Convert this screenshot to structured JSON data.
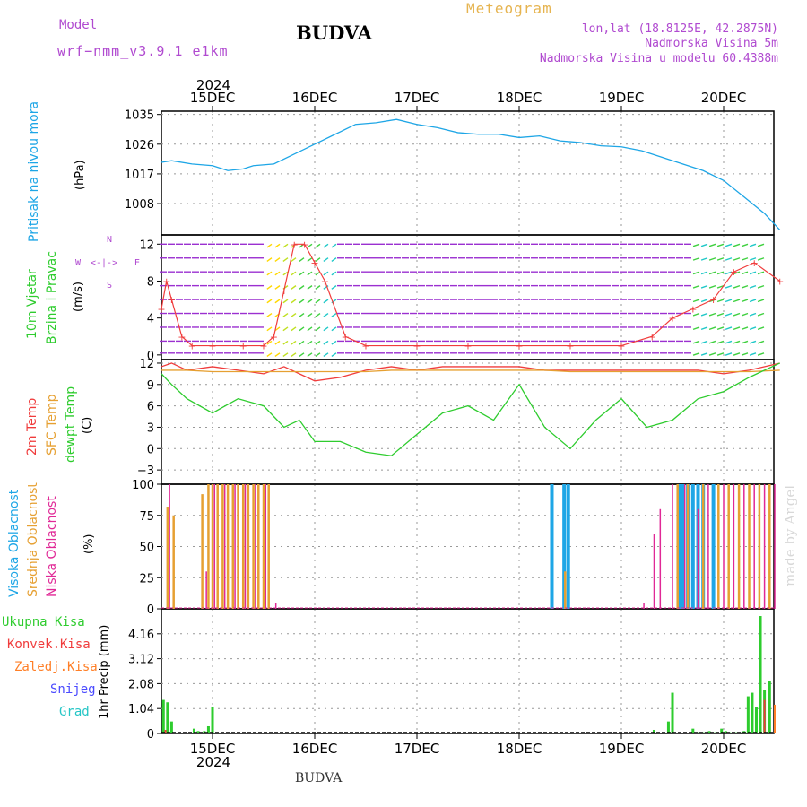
{
  "header": {
    "model_label": "Model",
    "model_name": "wrf−nmm_v3.9.1  e1km",
    "station": "BUDVA",
    "product": "Meteogram",
    "lonlat": "lon,lat (18.8125E, 42.2875N)",
    "elevation": "Nadmorska Visina 5m",
    "elevation_model": "Nadmorska Visina u modelu 60.4388m",
    "credit": "made by Angel",
    "footer_station": "BUDVA"
  },
  "colors": {
    "pressure": "#1ea6e6",
    "wind_speed": "#f03c3c",
    "temp2m": "#f03c3c",
    "sfc_temp": "#e6a032",
    "dewpt": "#2ecc2e",
    "high_cloud": "#1ea6e6",
    "mid_cloud": "#e6a032",
    "low_cloud": "#e02896",
    "total_precip": "#2ecc2e",
    "conv_precip": "#f03c3c",
    "frz_precip": "#ff7f27",
    "snow": "#4b4bff",
    "hail": "#26c6c6",
    "model_label": "#b04ad0",
    "product": "#e6b450"
  },
  "time_axis": {
    "day_labels": [
      "15DEC",
      "16DEC",
      "17DEC",
      "18DEC",
      "19DEC",
      "20DEC"
    ],
    "year": "2024"
  },
  "chart_data": [
    {
      "type": "line",
      "title": "",
      "ylabel": "Pritisak na nivou mora (hPa)",
      "yticks": [
        "1035",
        "1026",
        "1017",
        "1008"
      ],
      "ylim": [
        998.5,
        1036
      ],
      "x_days": [
        0,
        0.1,
        0.3,
        0.5,
        0.65,
        0.8,
        0.9,
        1.1,
        1.3,
        1.5,
        1.7,
        1.9,
        2.1,
        2.3,
        2.5,
        2.7,
        2.9,
        3.1,
        3.3,
        3.5,
        3.7,
        3.9,
        4.1,
        4.3,
        4.5,
        4.7,
        4.9,
        5.1,
        5.3,
        5.5,
        5.7,
        5.9,
        6.05
      ],
      "series": [
        {
          "name": "Pritisak na nivou mora",
          "values": [
            1020.5,
            1021,
            1020,
            1019.5,
            1018,
            1018.5,
            1019.5,
            1020,
            1023,
            1026,
            1029,
            1032,
            1032.5,
            1033.5,
            1032,
            1031,
            1029.5,
            1029,
            1029,
            1028,
            1028.5,
            1027,
            1026.5,
            1025.5,
            1025.2,
            1024,
            1022,
            1020,
            1018,
            1015,
            1010,
            1005,
            1000
          ]
        }
      ]
    },
    {
      "type": "line",
      "title": "",
      "ylabel": "10m Vjetar Brzina i Pravac (m/s)",
      "yticks": [
        "12",
        "8",
        "4",
        "0"
      ],
      "ylim": [
        -0.5,
        13
      ],
      "x_days": [
        0,
        0.05,
        0.1,
        0.2,
        0.3,
        0.5,
        0.8,
        1.0,
        1.1,
        1.2,
        1.3,
        1.4,
        1.5,
        1.6,
        1.8,
        2.0,
        2.5,
        3.0,
        3.5,
        4.0,
        4.5,
        4.8,
        5.0,
        5.2,
        5.4,
        5.6,
        5.8,
        6.05
      ],
      "series": [
        {
          "name": "10m Vjetar",
          "values": [
            5,
            8,
            6,
            2,
            1,
            1,
            1,
            1,
            2,
            7,
            12,
            12,
            10,
            8,
            2,
            1,
            1,
            1,
            1,
            1,
            1,
            2,
            4,
            5,
            6,
            9,
            10,
            8
          ]
        }
      ]
    },
    {
      "type": "line",
      "title": "",
      "ylabel": "2m Temp / SFC Temp / dewpt Temp (C)",
      "yticks": [
        "12",
        "9",
        "6",
        "3",
        "0",
        "−3"
      ],
      "ylim": [
        -5,
        12.5
      ],
      "x_days": [
        0,
        0.1,
        0.25,
        0.5,
        0.75,
        1.0,
        1.2,
        1.35,
        1.5,
        1.75,
        2.0,
        2.25,
        2.5,
        2.75,
        3.0,
        3.25,
        3.5,
        3.75,
        4.0,
        4.25,
        4.5,
        4.75,
        5.0,
        5.25,
        5.5,
        5.75,
        6.05
      ],
      "series": [
        {
          "name": "2m Temp",
          "values": [
            11.5,
            12,
            11,
            11.5,
            11,
            10.5,
            11.5,
            10.5,
            9.5,
            10,
            11,
            11.5,
            11,
            11.5,
            11.5,
            11.5,
            11.5,
            11,
            11,
            11,
            11,
            11,
            11,
            11,
            10.5,
            11,
            12
          ]
        },
        {
          "name": "SFC Temp",
          "values": [
            11,
            11,
            11,
            10.8,
            10.8,
            10.8,
            10.8,
            10.8,
            10.8,
            10.8,
            10.8,
            11,
            11,
            11,
            11,
            11,
            11,
            11,
            10.8,
            10.8,
            10.8,
            10.8,
            10.8,
            10.8,
            10.8,
            10.8,
            11
          ]
        },
        {
          "name": "dewpt Temp",
          "values": [
            10.5,
            9,
            7,
            5,
            7,
            6,
            3,
            4,
            1,
            1,
            -0.5,
            -1,
            2,
            5,
            6,
            4,
            9,
            3,
            0,
            4,
            7,
            3,
            4,
            7,
            8,
            10,
            12
          ]
        }
      ]
    },
    {
      "type": "bar",
      "title": "",
      "ylabel": "Visoka Oblacnost / Srednja Oblacnost / Niska Oblacnost (%)",
      "yticks": [
        "100",
        "75",
        "50",
        "25",
        "0"
      ],
      "ylim": [
        0,
        100
      ],
      "series": [
        {
          "name": "Visoka Oblacnost",
          "x_days": [
            3.82,
            3.94,
            3.98,
            5.07,
            5.1,
            5.15,
            5.2,
            5.25,
            5.3,
            5.4
          ],
          "values": [
            100,
            100,
            100,
            100,
            100,
            100,
            100,
            100,
            100,
            100
          ]
        },
        {
          "name": "Srednja Oblacnost",
          "x_days": [
            0.06,
            0.12,
            0.4,
            0.46,
            0.5,
            0.55,
            0.6,
            0.65,
            0.7,
            0.75,
            0.8,
            0.85,
            0.9,
            0.95,
            1.0,
            1.05,
            3.95,
            5.05,
            5.15,
            5.3,
            5.45,
            5.55,
            5.65,
            5.75,
            5.85,
            5.95
          ],
          "values": [
            82,
            75,
            92,
            100,
            100,
            100,
            100,
            100,
            100,
            100,
            100,
            100,
            100,
            100,
            100,
            100,
            30,
            100,
            100,
            100,
            100,
            100,
            100,
            100,
            100,
            100
          ]
        },
        {
          "name": "Niska Oblacnost",
          "x_days": [
            0.08,
            0.44,
            0.52,
            0.62,
            0.72,
            0.82,
            0.92,
            1.02,
            1.12,
            4.72,
            4.82,
            4.88,
            5.0,
            5.12,
            5.25,
            5.35,
            5.5,
            5.6,
            5.7,
            5.8,
            5.9,
            6.0
          ],
          "values": [
            100,
            30,
            100,
            100,
            100,
            100,
            100,
            100,
            5,
            5,
            60,
            80,
            100,
            100,
            80,
            100,
            100,
            100,
            100,
            100,
            100,
            100
          ]
        }
      ]
    },
    {
      "type": "bar",
      "title": "",
      "ylabel": "1hr Precip (mm)",
      "yticks": [
        "4.16",
        "3.12",
        "2.08",
        "1.04",
        "0"
      ],
      "ylim": [
        0,
        5.2
      ],
      "series": [
        {
          "name": "Ukupna Kisa",
          "x_days": [
            0.02,
            0.06,
            0.1,
            0.32,
            0.36,
            0.42,
            0.46,
            0.5,
            4.82,
            4.96,
            5.0,
            5.2,
            5.25,
            5.3,
            5.36,
            5.42,
            5.48,
            5.52,
            5.56,
            5.62,
            5.66,
            5.7,
            5.74,
            5.78,
            5.82,
            5.86,
            5.9,
            5.95
          ],
          "values": [
            1.4,
            1.3,
            0.5,
            0.2,
            0.1,
            0.1,
            0.3,
            1.1,
            0.15,
            0.5,
            1.7,
            0.2,
            0.05,
            0.05,
            0.1,
            0.05,
            0.2,
            0.1,
            0.05,
            0.05,
            0.05,
            0.1,
            1.55,
            1.7,
            1.1,
            4.9,
            1.8,
            2.2
          ]
        },
        {
          "name": "Konvek.Kisa",
          "x_days": [
            0.04,
            5.9
          ],
          "values": [
            0.15,
            1.4
          ]
        },
        {
          "name": "Zaledj.Kisa",
          "x_days": [
            6.0
          ],
          "values": [
            1.2
          ]
        },
        {
          "name": "Snijeg",
          "x_days": [],
          "values": []
        },
        {
          "name": "Grad",
          "x_days": [],
          "values": []
        }
      ]
    }
  ],
  "labels": {
    "pressure_axis": "Pritisak na nivou mora",
    "pressure_unit": "(hPa)",
    "wind_axis_1": "10m Vjetar",
    "wind_axis_2": "Brzina i Pravac",
    "wind_unit": "(m/s)",
    "compass_n": "N",
    "compass_s": "S",
    "compass_w": "W",
    "compass_e": "E",
    "temp_2m": "2m Temp",
    "temp_sfc": "SFC Temp",
    "temp_dew": "dewpt Temp",
    "temp_unit": "(C)",
    "cloud_high": "Visoka Oblacnost",
    "cloud_mid": "Srednja Oblacnost",
    "cloud_low": "Niska Oblacnost",
    "cloud_unit": "(%)",
    "precip_axis": "1hr Precip (mm)",
    "legend_total": "Ukupna Kisa",
    "legend_conv": "Konvek.Kisa",
    "legend_frz": "Zaledj.Kisa",
    "legend_snow": "Snijeg",
    "legend_hail": "Grad"
  }
}
